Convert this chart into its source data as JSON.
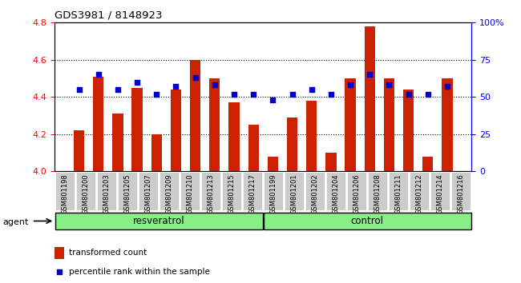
{
  "title": "GDS3981 / 8148923",
  "samples": [
    "GSM801198",
    "GSM801200",
    "GSM801203",
    "GSM801205",
    "GSM801207",
    "GSM801209",
    "GSM801210",
    "GSM801213",
    "GSM801215",
    "GSM801217",
    "GSM801199",
    "GSM801201",
    "GSM801202",
    "GSM801204",
    "GSM801206",
    "GSM801208",
    "GSM801211",
    "GSM801212",
    "GSM801214",
    "GSM801216"
  ],
  "transformed_count": [
    4.22,
    4.51,
    4.31,
    4.45,
    4.2,
    4.44,
    4.6,
    4.5,
    4.37,
    4.25,
    4.08,
    4.29,
    4.38,
    4.1,
    4.5,
    4.78,
    4.5,
    4.44,
    4.08,
    4.5
  ],
  "percentile_rank": [
    55,
    65,
    55,
    60,
    52,
    57,
    63,
    58,
    52,
    52,
    48,
    52,
    55,
    52,
    58,
    65,
    58,
    52,
    52,
    57
  ],
  "resveratrol_count": 10,
  "ylim_left": [
    4.0,
    4.8
  ],
  "ylim_right": [
    0,
    100
  ],
  "yticks_left": [
    4.0,
    4.2,
    4.4,
    4.6,
    4.8
  ],
  "yticks_right": [
    0,
    25,
    50,
    75,
    100
  ],
  "bar_color": "#cc2200",
  "dot_color": "#0000cc",
  "resveratrol_label": "resveratrol",
  "control_label": "control",
  "agent_label": "agent",
  "legend_bar_label": "transformed count",
  "legend_dot_label": "percentile rank within the sample",
  "group_bg_color": "#88ee88",
  "tick_label_bg": "#cccccc",
  "background_color": "#ffffff",
  "grid_lines": [
    4.2,
    4.4,
    4.6
  ]
}
